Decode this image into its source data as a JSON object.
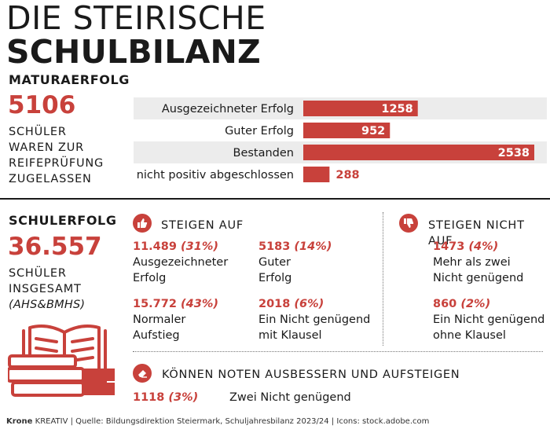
{
  "title": {
    "line1": "DIE STEIRISCHE",
    "line2": "SCHULBILANZ"
  },
  "matura": {
    "heading": "MATURAERFOLG",
    "total": "5106",
    "caption": [
      "SCHÜLER",
      "WAREN ZUR",
      "REIFEPRÜFUNG",
      "ZUGELASSEN"
    ]
  },
  "chart_data": {
    "type": "bar",
    "orientation": "horizontal",
    "title": "MATURAERFOLG",
    "categories": [
      "Ausgezeichneter Erfolg",
      "Guter Erfolg",
      "Bestanden",
      "nicht positiv abgeschlossen"
    ],
    "values": [
      1258,
      952,
      2538,
      288
    ],
    "colors": {
      "bar": "#c8413b",
      "row_band": "#ececec"
    }
  },
  "schulerfolg": {
    "heading": "SCHULERFOLG",
    "total": "36.557",
    "caption": [
      "SCHÜLER",
      "INSGESAMT"
    ],
    "caption_note": "(AHS&BMHS)",
    "steigen_auf": {
      "heading": "STEIGEN AUF",
      "items": [
        {
          "value": "11.489",
          "pct": "(31%)",
          "label": [
            "Ausgezeichneter",
            "Erfolg"
          ]
        },
        {
          "value": "5183",
          "pct": "(14%)",
          "label": [
            "Guter",
            "Erfolg"
          ]
        },
        {
          "value": "15.772",
          "pct": "(43%)",
          "label": [
            "Normaler",
            "Aufstieg"
          ]
        },
        {
          "value": "2018",
          "pct": "(6%)",
          "label": [
            "Ein Nicht genügend",
            "mit Klausel"
          ]
        }
      ]
    },
    "steigen_nicht_auf": {
      "heading": "STEIGEN NICHT AUF",
      "items": [
        {
          "value": "1473",
          "pct": "(4%)",
          "label": [
            "Mehr als zwei",
            "Nicht genügend"
          ]
        },
        {
          "value": "860",
          "pct": "(2%)",
          "label": [
            "Ein Nicht genügend",
            "ohne Klausel"
          ]
        }
      ]
    },
    "ausbessern": {
      "heading": "KÖNNEN NOTEN AUSBESSERN UND AUFSTEIGEN",
      "value": "1118",
      "pct": "(3%)",
      "label": "Zwei Nicht genügend"
    }
  },
  "footer": {
    "brand": "Krone",
    "brand_suffix": "KREATIV",
    "source": "| Quelle: Bildungsdirektion Steiermark, Schuljahresbilanz 2023/24 | Icons: stock.adobe.com"
  },
  "colors": {
    "accent": "#c8413b",
    "text": "#1a1a1a",
    "band": "#ececec"
  },
  "icons": {
    "steigen_auf": "thumbs-up-icon",
    "steigen_nicht_auf": "thumbs-down-icon",
    "ausbessern": "eraser-icon",
    "illustration": "book-stack-icon"
  }
}
